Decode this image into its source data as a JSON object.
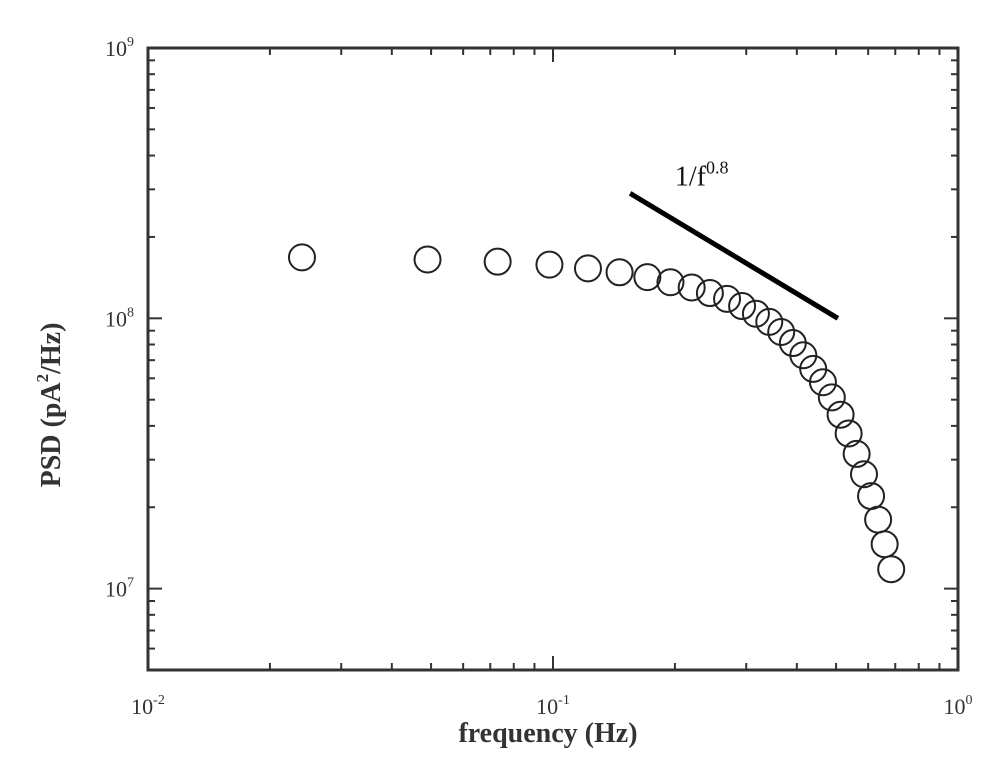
{
  "chart_data": {
    "type": "scatter",
    "title": "",
    "xlabel": "frequency (Hz)",
    "ylabel_parts": {
      "pre": "PSD  (pA",
      "sup": "2",
      "post": "/Hz)"
    },
    "xscale": "log",
    "yscale": "log",
    "xlim": [
      0.01,
      1
    ],
    "ylim": [
      5000000,
      1000000000
    ],
    "x_ticks": [
      {
        "base": "10",
        "exp": "-2",
        "value": 0.01
      },
      {
        "base": "10",
        "exp": "-1",
        "value": 0.1
      },
      {
        "base": "10",
        "exp": "0",
        "value": 1
      }
    ],
    "y_ticks": [
      {
        "base": "10",
        "exp": "7",
        "value": 10000000
      },
      {
        "base": "10",
        "exp": "8",
        "value": 100000000
      },
      {
        "base": "10",
        "exp": "9",
        "value": 1000000000
      }
    ],
    "marker": "open-circle",
    "series": [
      {
        "x": [
          0.024,
          0.049,
          0.073,
          0.098,
          0.122,
          0.146,
          0.171,
          0.195,
          0.22,
          0.244,
          0.269,
          0.293,
          0.317,
          0.342,
          0.366,
          0.391,
          0.415,
          0.439,
          0.464,
          0.488,
          0.513,
          0.537,
          0.562,
          0.586,
          0.61,
          0.635,
          0.659,
          0.684
        ],
        "y": [
          168000000,
          165000000,
          162000000,
          158000000,
          153000000,
          148000000,
          142000000,
          136000000,
          130000000,
          124000000,
          118000000,
          111000000,
          104000000,
          97000000,
          89000000,
          81000000,
          73000000,
          65000000,
          58000000,
          51000000,
          44000000,
          37500000,
          31500000,
          26500000,
          22000000,
          18000000,
          14600000,
          11800000
        ]
      }
    ],
    "reference_line": {
      "label_base": "1/f",
      "label_exp": "0.8",
      "slope": -0.8,
      "x": [
        0.155,
        0.505
      ],
      "y": [
        290000000,
        100000000
      ]
    },
    "grid": false,
    "legend": "none"
  }
}
